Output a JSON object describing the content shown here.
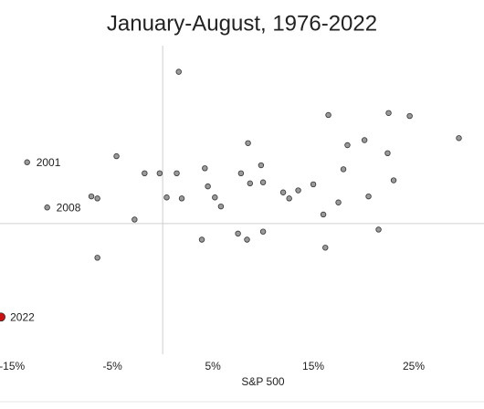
{
  "chart_data": {
    "type": "scatter",
    "title": "January-August, 1976-2022",
    "xlabel": "S&P 500",
    "x": [
      1.6,
      16.5,
      22.5,
      24.6,
      29.5,
      20.1,
      18.4,
      8.5,
      22.4,
      -4.6,
      -13.5,
      9.8,
      4.2,
      18.0,
      -1.8,
      -0.3,
      1.4,
      7.8,
      23.0,
      8.7,
      10.0,
      15.0,
      4.5,
      12.0,
      13.5,
      12.6,
      -7.1,
      -6.5,
      0.4,
      1.9,
      5.2,
      20.5,
      5.8,
      17.5,
      -11.5,
      16.0,
      -2.8,
      21.5,
      7.5,
      10.0,
      3.9,
      8.4,
      16.2,
      -6.5,
      -16.1
    ],
    "values": [
      15.1,
      10.8,
      11.0,
      10.7,
      8.5,
      8.3,
      7.8,
      8.0,
      7.0,
      6.7,
      6.1,
      5.8,
      5.5,
      5.4,
      5.0,
      5.0,
      5.0,
      5.0,
      4.3,
      4.0,
      4.1,
      3.9,
      3.7,
      3.1,
      3.3,
      2.5,
      2.7,
      2.5,
      2.6,
      2.5,
      2.6,
      2.7,
      1.7,
      2.1,
      1.6,
      0.9,
      0.4,
      -0.6,
      -1.0,
      -0.8,
      -1.6,
      -1.6,
      -2.4,
      -3.4,
      -9.3
    ],
    "point_labels": [
      null,
      null,
      null,
      null,
      null,
      null,
      null,
      null,
      null,
      null,
      "2001",
      null,
      null,
      null,
      null,
      null,
      null,
      null,
      null,
      null,
      null,
      null,
      null,
      null,
      null,
      null,
      null,
      null,
      null,
      null,
      null,
      null,
      null,
      null,
      "2008",
      null,
      null,
      null,
      null,
      null,
      null,
      null,
      null,
      null,
      "2022"
    ],
    "color": "#9a9a9a",
    "colors": [
      "#9a9a9a",
      "#9a9a9a",
      "#9a9a9a",
      "#9a9a9a",
      "#9a9a9a",
      "#9a9a9a",
      "#9a9a9a",
      "#9a9a9a",
      "#9a9a9a",
      "#9a9a9a",
      "#9a9a9a",
      "#9a9a9a",
      "#9a9a9a",
      "#9a9a9a",
      "#9a9a9a",
      "#9a9a9a",
      "#9a9a9a",
      "#9a9a9a",
      "#9a9a9a",
      "#9a9a9a",
      "#9a9a9a",
      "#9a9a9a",
      "#9a9a9a",
      "#9a9a9a",
      "#9a9a9a",
      "#9a9a9a",
      "#9a9a9a",
      "#9a9a9a",
      "#9a9a9a",
      "#9a9a9a",
      "#9a9a9a",
      "#9a9a9a",
      "#9a9a9a",
      "#9a9a9a",
      "#9a9a9a",
      "#9a9a9a",
      "#9a9a9a",
      "#9a9a9a",
      "#9a9a9a",
      "#9a9a9a",
      "#9a9a9a",
      "#9a9a9a",
      "#9a9a9a",
      "#9a9a9a",
      "#cc1111"
    ],
    "xlim": [
      -16.2,
      32
    ],
    "ylim": [
      -13,
      17.7
    ],
    "xticks": [
      {
        "value": -15,
        "label": "-15%"
      },
      {
        "value": -5,
        "label": "-5%"
      },
      {
        "value": 5,
        "label": "5%"
      },
      {
        "value": 15,
        "label": "15%"
      },
      {
        "value": 25,
        "label": "25%"
      }
    ]
  }
}
